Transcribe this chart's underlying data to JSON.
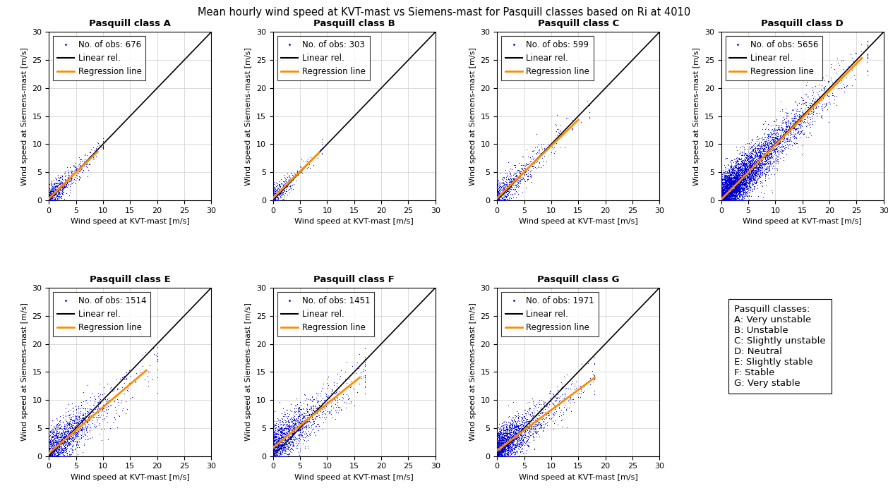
{
  "title": "Mean hourly wind speed at KVT-mast vs Siemens-mast for Pasquill classes based on Ri at 4010",
  "classes": [
    "A",
    "B",
    "C",
    "D",
    "E",
    "F",
    "G"
  ],
  "subtitles": [
    "Pasquill class A",
    "Pasquill class B",
    "Pasquill class C",
    "Pasquill class D",
    "Pasquill class E",
    "Pasquill class F",
    "Pasquill class G"
  ],
  "n_obs": [
    676,
    303,
    599,
    5656,
    1514,
    1451,
    1971
  ],
  "xlabel": "Wind speed at KVT-mast [m/s]",
  "ylabel": "Wind speed at Siemens-mast [m/s]",
  "xlim": [
    0,
    30
  ],
  "ylim": [
    0,
    30
  ],
  "xticks": [
    0,
    5,
    10,
    15,
    20,
    25,
    30
  ],
  "yticks": [
    0,
    5,
    10,
    15,
    20,
    25,
    30
  ],
  "dot_color": "#0000CC",
  "linear_color": "#000000",
  "regression_color": "#FF8C00",
  "dot_size": 3,
  "pasquill_classes_text": [
    "Pasquill classes:",
    "A: Very unstable",
    "B: Unstable",
    "C: Slightly unstable",
    "D: Neutral",
    "E: Slightly stable",
    "F: Stable",
    "G: Very stable"
  ],
  "regression_params": {
    "A": {
      "slope": 0.93,
      "intercept": 0.3,
      "x_end": 9.0
    },
    "B": {
      "slope": 0.95,
      "intercept": 0.4,
      "x_end": 8.5
    },
    "C": {
      "slope": 0.93,
      "intercept": 0.4,
      "x_end": 15.0
    },
    "D": {
      "slope": 0.97,
      "intercept": 0.15,
      "x_end": 26.0
    },
    "E": {
      "slope": 0.82,
      "intercept": 0.5,
      "x_end": 18.0
    },
    "F": {
      "slope": 0.78,
      "intercept": 1.5,
      "x_end": 16.0
    },
    "G": {
      "slope": 0.72,
      "intercept": 1.0,
      "x_end": 18.0
    }
  },
  "scatter_params": {
    "A": {
      "x_mean": 3.5,
      "x_scale": 2.5,
      "x_max": 10,
      "y_factor": 0.93,
      "y_intercept": 0.3,
      "spread": 1.0
    },
    "B": {
      "x_mean": 3.5,
      "x_scale": 2.0,
      "x_max": 9,
      "y_factor": 0.95,
      "y_intercept": 0.4,
      "spread": 1.0
    },
    "C": {
      "x_mean": 5.0,
      "x_scale": 3.5,
      "x_max": 17,
      "y_factor": 0.93,
      "y_intercept": 0.4,
      "spread": 1.5
    },
    "D": {
      "x_mean": 7.0,
      "x_scale": 5.0,
      "x_max": 27,
      "y_factor": 0.97,
      "y_intercept": 0.15,
      "spread": 2.0
    },
    "E": {
      "x_mean": 6.0,
      "x_scale": 4.0,
      "x_max": 20,
      "y_factor": 0.82,
      "y_intercept": 0.5,
      "spread": 2.0
    },
    "F": {
      "x_mean": 6.0,
      "x_scale": 4.0,
      "x_max": 17,
      "y_factor": 0.78,
      "y_intercept": 1.5,
      "spread": 2.0
    },
    "G": {
      "x_mean": 5.5,
      "x_scale": 3.5,
      "x_max": 18,
      "y_factor": 0.72,
      "y_intercept": 1.0,
      "spread": 1.8
    }
  }
}
